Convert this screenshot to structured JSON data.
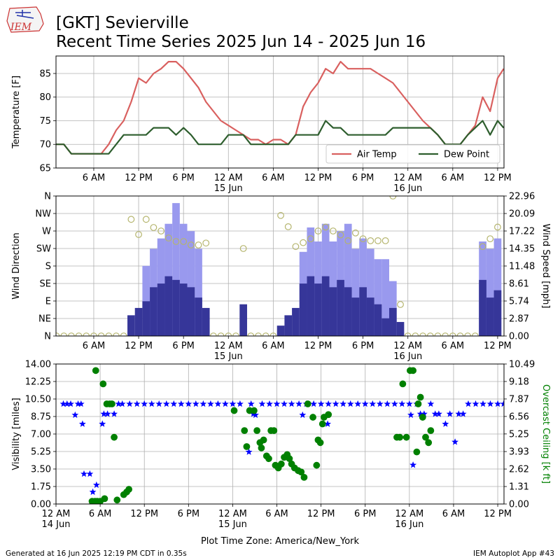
{
  "logo": "IEM",
  "title": "[GKT] Sevierville",
  "subtitle": "Recent Time Series 2025 Jun 14 - 2025 Jun 16",
  "footer": {
    "left": "Generated at 16 Jun 2025 12:19 PM CDT in 0.35s",
    "right": "IEM Autoplot App #43"
  },
  "chart_data": [
    {
      "type": "line",
      "ylabel": "Temperature [F]",
      "grid": true,
      "legend": "lower right",
      "xlim": [
        0.95,
        60.85
      ],
      "ylim": [
        65,
        88.7
      ],
      "yticks": [
        65,
        70,
        75,
        80,
        85
      ],
      "xticks": [
        {
          "value": 6,
          "label": "6 AM"
        },
        {
          "value": 12,
          "label": "12 PM"
        },
        {
          "value": 18,
          "label": "6 PM"
        },
        {
          "value": 24,
          "label": "12 AM\n15 Jun"
        },
        {
          "value": 30,
          "label": "6 AM"
        },
        {
          "value": 36,
          "label": "12 PM"
        },
        {
          "value": 42,
          "label": "6 PM"
        },
        {
          "value": 48,
          "label": "12 AM\n16 Jun"
        },
        {
          "value": 54,
          "label": "6 AM"
        },
        {
          "value": 60,
          "label": "12 PM"
        }
      ],
      "x": [
        1,
        2,
        3,
        4,
        5,
        6,
        7,
        8,
        9,
        10,
        11,
        12,
        13,
        14,
        15,
        16,
        17,
        18,
        19,
        20,
        21,
        22,
        23,
        24,
        25,
        26,
        27,
        28,
        29,
        30,
        31,
        32,
        33,
        34,
        35,
        36,
        37,
        38,
        39,
        40,
        41,
        42,
        43,
        44,
        45,
        46,
        47,
        48,
        49,
        50,
        51,
        52,
        53,
        54,
        55,
        56,
        57,
        58,
        59,
        60,
        60.8
      ],
      "series": [
        {
          "name": "Air Temp",
          "color": "#d9605f",
          "marker": "line",
          "values": [
            70,
            70,
            68,
            68,
            68,
            68,
            68,
            70,
            73,
            75,
            79,
            84,
            83,
            85,
            86,
            87.5,
            87.5,
            86,
            84,
            82,
            79,
            77,
            75,
            74,
            73,
            72,
            71,
            71,
            70,
            71,
            71,
            70,
            72,
            78,
            81,
            83,
            86,
            85,
            87.5,
            86,
            86,
            86,
            86,
            85,
            84,
            83,
            81,
            79,
            77,
            75,
            73.5,
            72,
            70,
            70,
            70,
            72,
            74,
            80,
            77,
            84,
            86
          ]
        },
        {
          "name": "Dew Point",
          "color": "#2e5e2e",
          "marker": "line",
          "values": [
            70,
            70,
            68,
            68,
            68,
            68,
            68,
            68,
            70,
            72,
            72,
            72,
            72,
            73.5,
            73.5,
            73.5,
            72,
            73.5,
            72,
            70,
            70,
            70,
            70,
            72,
            72,
            72,
            70,
            70,
            70,
            70,
            70,
            70,
            72,
            72,
            72,
            72,
            75,
            73.5,
            73.5,
            72,
            72,
            72,
            72,
            72,
            72,
            73.5,
            73.5,
            73.5,
            73.5,
            73.5,
            73.5,
            72,
            70,
            70,
            70,
            72,
            73.5,
            75,
            72,
            75,
            73.5
          ]
        }
      ]
    },
    {
      "type": "wind",
      "ylabel": "Wind Direction",
      "y2label": "Wind Speed [mph]",
      "grid": true,
      "xlim": [
        0.95,
        60.85
      ],
      "ylim": [
        0,
        360
      ],
      "y2lim": [
        0,
        22.96
      ],
      "yticks": [
        {
          "value": 0,
          "label": "N"
        },
        {
          "value": 45,
          "label": "NE"
        },
        {
          "value": 90,
          "label": "E"
        },
        {
          "value": 135,
          "label": "SE"
        },
        {
          "value": 180,
          "label": "S"
        },
        {
          "value": 225,
          "label": "SW"
        },
        {
          "value": 270,
          "label": "W"
        },
        {
          "value": 315,
          "label": "NW"
        },
        {
          "value": 360,
          "label": "N"
        }
      ],
      "y2ticks": [
        {
          "value": 0,
          "label": "0.00"
        },
        2.87,
        5.74,
        8.61,
        11.48,
        14.35,
        17.22,
        20.09,
        22.96
      ],
      "xticks": [
        {
          "value": 6,
          "label": "6 AM"
        },
        {
          "value": 12,
          "label": "12 PM"
        },
        {
          "value": 18,
          "label": "6 PM"
        },
        {
          "value": 24,
          "label": "12 AM\n15 Jun"
        },
        {
          "value": 30,
          "label": "6 AM"
        },
        {
          "value": 36,
          "label": "12 PM"
        },
        {
          "value": 42,
          "label": "6 PM"
        },
        {
          "value": 48,
          "label": "12 AM\n16 Jun"
        },
        {
          "value": 54,
          "label": "6 AM"
        },
        {
          "value": 60,
          "label": "12 PM"
        }
      ],
      "x": [
        1,
        2,
        3,
        4,
        5,
        6,
        7,
        8,
        9,
        10,
        11,
        12,
        13,
        14,
        15,
        16,
        17,
        18,
        19,
        20,
        21,
        22,
        23,
        24,
        25,
        26,
        27,
        28,
        29,
        30,
        31,
        32,
        33,
        34,
        35,
        36,
        37,
        38,
        39,
        40,
        41,
        42,
        43,
        44,
        45,
        46,
        47,
        48,
        49,
        50,
        51,
        52,
        53,
        54,
        55,
        56,
        57,
        58,
        59,
        60
      ],
      "series": [
        {
          "color": "#9999ee",
          "marker": "bar",
          "axis": "y2",
          "values": [
            null,
            null,
            null,
            null,
            null,
            null,
            null,
            null,
            null,
            null,
            null,
            null,
            11.5,
            14.3,
            16,
            18.4,
            21.8,
            18.4,
            17.2,
            14.3,
            null,
            null,
            null,
            null,
            null,
            null,
            null,
            null,
            null,
            null,
            null,
            null,
            null,
            13.8,
            17.8,
            15.5,
            18.4,
            15.5,
            17.2,
            18.4,
            14.3,
            16,
            14.3,
            12.6,
            12.6,
            9,
            null,
            null,
            null,
            null,
            null,
            null,
            null,
            null,
            null,
            null,
            null,
            15.5,
            14.3,
            16
          ]
        },
        {
          "color": "#363699",
          "marker": "bar",
          "axis": "y2",
          "values": [
            0,
            0,
            0,
            0,
            0,
            0,
            0,
            0,
            0,
            0,
            3.4,
            4.6,
            5.7,
            8,
            8.6,
            9.8,
            9.2,
            8.6,
            8,
            6.3,
            4.6,
            0,
            0,
            0,
            0,
            5.2,
            0,
            0,
            0,
            0,
            1.7,
            3.4,
            4.6,
            8.6,
            9.8,
            8.6,
            9.8,
            8,
            9.2,
            8,
            6.3,
            8,
            6.3,
            5.2,
            2.9,
            4.6,
            2.3,
            0,
            0,
            0,
            0,
            0,
            0,
            0,
            0,
            0,
            0,
            9.2,
            6.3,
            7.5
          ]
        },
        {
          "color": "#b5b56e",
          "marker": "circle",
          "filled": false,
          "values": [
            0,
            0,
            0,
            0,
            0,
            0,
            0,
            0,
            0,
            0,
            300,
            261,
            300,
            279,
            270,
            252,
            243,
            243,
            234,
            234,
            239,
            0,
            0,
            0,
            0,
            225,
            0,
            0,
            0,
            0,
            310,
            281,
            230,
            240,
            250,
            270,
            280,
            270,
            260,
            245,
            265,
            250,
            245,
            245,
            245,
            360,
            81,
            0,
            0,
            0,
            0,
            0,
            0,
            0,
            0,
            0,
            0,
            230,
            250,
            280
          ]
        }
      ]
    },
    {
      "type": "scatter",
      "ylabel": "Visibility [miles]",
      "y2label": "Overcast Ceiling [k ft]",
      "y2label_color": "green",
      "xlabel": "Plot Time Zone: America/New_York",
      "grid": true,
      "xlim": [
        0,
        60.85
      ],
      "ylim": [
        0,
        14
      ],
      "y2lim": [
        0,
        10.49
      ],
      "yticks": [
        {
          "value": 0,
          "label": "0.00"
        },
        1.75,
        {
          "value": 3.5,
          "label": "3.50"
        },
        5.25,
        {
          "value": 7,
          "label": "7.00"
        },
        8.75,
        {
          "value": 10.5,
          "label": "10.50"
        },
        12.25,
        {
          "value": 14,
          "label": "14.00"
        }
      ],
      "y2ticks": [
        {
          "value": 0,
          "label": "0.00"
        },
        1.31,
        2.62,
        3.93,
        5.25,
        6.56,
        7.87,
        9.18,
        10.49
      ],
      "xticks": [
        {
          "value": 0,
          "label": "12 AM\n14 Jun"
        },
        {
          "value": 6,
          "label": "6 AM"
        },
        {
          "value": 12,
          "label": "12 PM"
        },
        {
          "value": 18,
          "label": "6 PM"
        },
        {
          "value": 24,
          "label": "12 AM\n15 Jun"
        },
        {
          "value": 30,
          "label": "6 AM"
        },
        {
          "value": 36,
          "label": "12 PM"
        },
        {
          "value": 42,
          "label": "6 PM"
        },
        {
          "value": 48,
          "label": "12 AM\n16 Jun"
        },
        {
          "value": 54,
          "label": "6 AM"
        },
        {
          "value": 60,
          "label": "12 PM"
        }
      ],
      "series": [
        {
          "color": "blue",
          "marker": "star",
          "x": [
            1,
            1.5,
            2,
            2.6,
            3,
            3.4,
            3.6,
            3.8,
            4.6,
            5,
            5.5,
            6.3,
            6.5,
            7,
            7.5,
            7.9,
            8.5,
            9,
            10,
            11,
            12,
            13,
            14,
            15,
            16,
            17,
            18,
            19,
            20,
            21,
            22,
            23,
            24,
            25,
            26.2,
            26.5,
            26.8,
            27.1,
            28,
            29,
            30,
            31,
            32,
            33,
            33.5,
            34,
            35,
            36,
            36.9,
            37,
            38,
            39,
            40,
            41,
            42,
            43,
            44,
            45,
            46,
            47,
            48,
            48.2,
            48.5,
            49,
            49.5,
            50,
            50.9,
            51.5,
            52,
            52.9,
            53.5,
            54.2,
            54.7,
            55.3,
            56,
            57,
            58,
            59,
            60,
            60.8
          ],
          "values": [
            10,
            10,
            10,
            8.9,
            10,
            10,
            8,
            3,
            3,
            1.2,
            1.9,
            8,
            9,
            9,
            10,
            9,
            10,
            10,
            10,
            10,
            10,
            10,
            10,
            10,
            10,
            10,
            10,
            10,
            10,
            10,
            10,
            10,
            10,
            10,
            5.2,
            10,
            9,
            8.9,
            10,
            10,
            10,
            10,
            10,
            10,
            8.9,
            10,
            10,
            10,
            8,
            10,
            10,
            10,
            10,
            10,
            10,
            10,
            10,
            10,
            10,
            10,
            10,
            8.9,
            3.9,
            10,
            9,
            9,
            10,
            9,
            9,
            8,
            9,
            6.2,
            9,
            9,
            10,
            10,
            10,
            10,
            10,
            10
          ]
        },
        {
          "color": "green",
          "marker": "circle",
          "filled": true,
          "axis": "y2",
          "x": [
            4.9,
            5.3,
            5.4,
            5.6,
            6.0,
            6.4,
            6.6,
            6.9,
            7.3,
            7.6,
            7.9,
            8.3,
            9.2,
            9.6,
            9.9,
            24.2,
            25.6,
            25.9,
            26.3,
            26.9,
            27.3,
            27.7,
            27.9,
            28.2,
            28.6,
            28.9,
            29.2,
            29.6,
            29.8,
            30.2,
            30.6,
            31.0,
            31.4,
            31.7,
            32.0,
            32.4,
            32.9,
            33.3,
            33.7,
            34.2,
            34.9,
            35.4,
            35.6,
            35.9,
            36.2,
            36.4,
            37.0,
            46.3,
            46.7,
            47.1,
            47.6,
            48.1,
            48.5,
            49.0,
            49.2,
            49.5,
            49.8,
            50.2,
            50.6,
            50.9
          ],
          "values": [
            0.2,
            0.2,
            10.0,
            0.2,
            0.2,
            9.0,
            0.4,
            7.5,
            7.5,
            7.5,
            5.0,
            0.3,
            0.7,
            0.9,
            1.1,
            7.0,
            5.5,
            4.3,
            7.0,
            7.0,
            5.5,
            4.6,
            4.2,
            4.8,
            3.6,
            3.4,
            5.5,
            5.5,
            2.9,
            2.7,
            3.0,
            3.5,
            3.7,
            3.4,
            3.0,
            2.7,
            2.5,
            2.4,
            2.0,
            7.5,
            6.5,
            2.9,
            4.8,
            4.6,
            6.0,
            6.5,
            6.7,
            5.0,
            5.0,
            9.0,
            5.0,
            10.0,
            10.0,
            3.9,
            7.5,
            8.0,
            6.5,
            5.0,
            4.6,
            5.5
          ]
        }
      ]
    }
  ]
}
